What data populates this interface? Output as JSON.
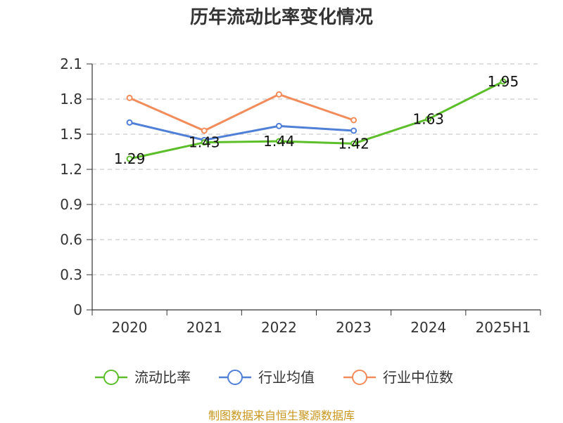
{
  "title": "历年流动比率变化情况",
  "source": "制图数据来自恒生聚源数据库",
  "colors": {
    "grid": "#cccccc",
    "axis": "#333333"
  },
  "chart_data": {
    "type": "line",
    "title": "历年流动比率变化情况",
    "categories": [
      "2020",
      "2021",
      "2022",
      "2023",
      "2024",
      "2025H1"
    ],
    "ylim": [
      0,
      2.1
    ],
    "yticks": [
      "0",
      "0.3",
      "0.6",
      "0.9",
      "1.2",
      "1.5",
      "1.8",
      "2.1"
    ],
    "grid": true,
    "legend_position": "bottom",
    "series": [
      {
        "name": "流动比率",
        "color": "#5cbf2a",
        "values": [
          1.29,
          1.43,
          1.44,
          1.42,
          1.63,
          1.95
        ],
        "labels": [
          "1.29",
          "1.43",
          "1.44",
          "1.42",
          "1.63",
          "1.95"
        ]
      },
      {
        "name": "行业均值",
        "color": "#4f7fd6",
        "values": [
          1.6,
          1.45,
          1.57,
          1.53,
          null,
          null
        ]
      },
      {
        "name": "行业中位数",
        "color": "#f28c5a",
        "values": [
          1.81,
          1.53,
          1.84,
          1.62,
          null,
          null
        ]
      }
    ]
  }
}
